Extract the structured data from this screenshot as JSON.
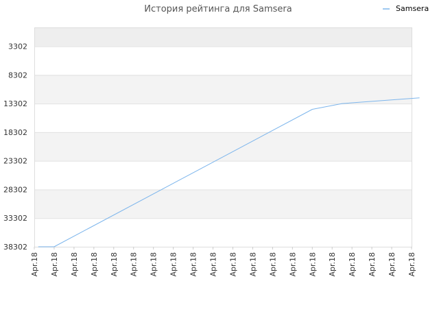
{
  "chart_data": {
    "type": "line",
    "title": "История рейтинга для Samsera",
    "legend_position": "top-right",
    "y_reversed": true,
    "grid": true,
    "y_ticks": [
      3302,
      8302,
      13302,
      18302,
      23302,
      28302,
      33302,
      38302
    ],
    "ylim": [
      38302,
      -0.6
    ],
    "x_tick_labels": [
      "Apr.18",
      "Apr.18",
      "Apr.18",
      "Apr.18",
      "Apr.18",
      "Apr.18",
      "Apr.18",
      "Apr.18",
      "Apr.18",
      "Apr.18",
      "Apr.18",
      "Apr.18",
      "Apr.18",
      "Apr.18",
      "Apr.18",
      "Apr.18",
      "Apr.18",
      "Apr.18",
      "Apr.18",
      "Apr.18"
    ],
    "series": [
      {
        "name": "Samsera",
        "color": "#7cb5ec",
        "x": [
          0.2,
          1.0,
          14.0,
          15.5,
          19.4
        ],
        "values": [
          38302,
          38302,
          14302,
          13302,
          12302
        ]
      }
    ]
  }
}
